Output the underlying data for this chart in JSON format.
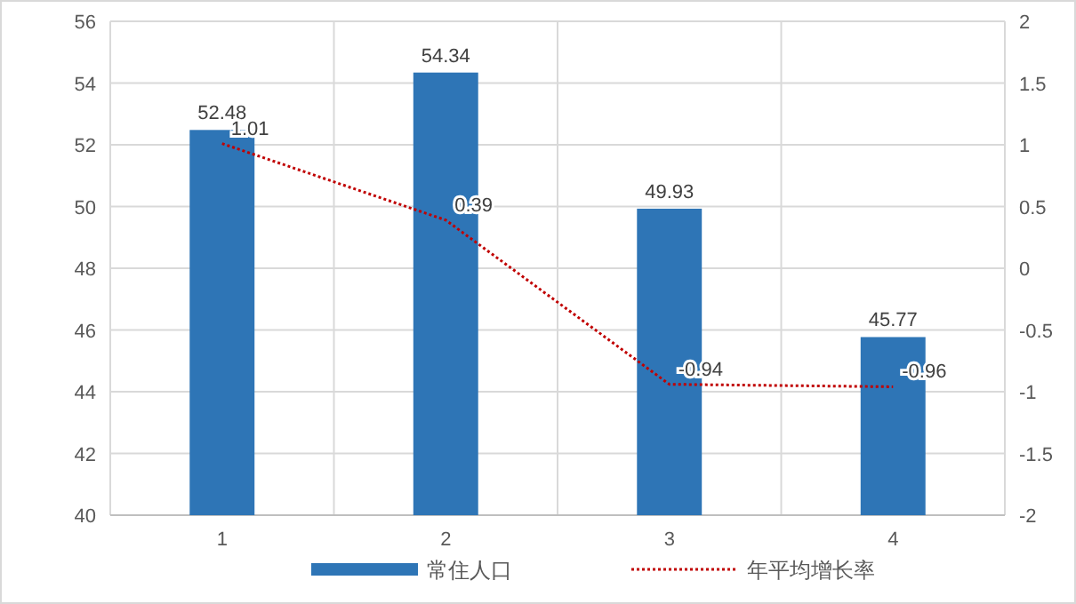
{
  "chart_data": {
    "type": "bar",
    "categories": [
      "1",
      "2",
      "3",
      "4"
    ],
    "series": [
      {
        "name": "常住人口",
        "color": "#2e75b6",
        "values": [
          52.48,
          54.34,
          49.93,
          45.77
        ]
      },
      {
        "name": "年平均增长率",
        "type": "line",
        "axis": "y2",
        "color": "#c00000",
        "line_style": "dotted",
        "values": [
          1.01,
          0.39,
          -0.94,
          -0.96
        ]
      }
    ],
    "ylim": [
      40,
      56
    ],
    "yticks": [
      40,
      42,
      44,
      46,
      48,
      50,
      52,
      54,
      56
    ],
    "y2lim": [
      -2,
      2
    ],
    "y2ticks": [
      -2,
      -1.5,
      -1,
      -0.5,
      0,
      0.5,
      1,
      1.5,
      2
    ],
    "grid": true,
    "legend": "bottom",
    "data_labels": true
  }
}
